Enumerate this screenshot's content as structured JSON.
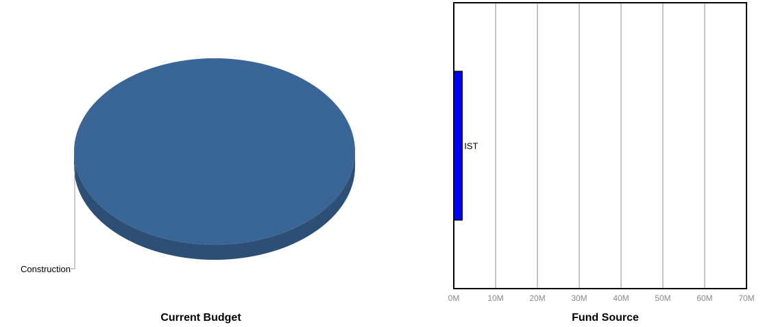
{
  "chart_data": [
    {
      "type": "pie",
      "title": "Current Budget",
      "three_d": true,
      "slices": [
        {
          "label": "Construction",
          "value": 100,
          "color": "#3a6597"
        }
      ]
    },
    {
      "type": "bar",
      "orientation": "horizontal",
      "title": "Fund Source",
      "categories": [
        "IST"
      ],
      "values": [
        2
      ],
      "unit_suffix": "M",
      "xlim": [
        0,
        70
      ],
      "xticks": [
        "0M",
        "10M",
        "20M",
        "30M",
        "40M",
        "50M",
        "60M",
        "70M"
      ],
      "bar_color": "#0000ff",
      "grid": true,
      "legend": "none"
    }
  ]
}
